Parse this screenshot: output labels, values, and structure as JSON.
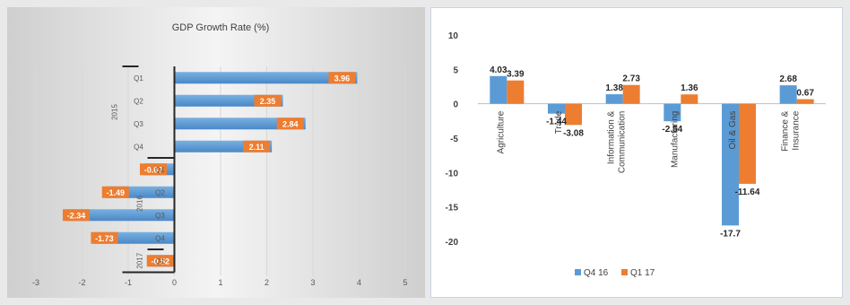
{
  "chart_data": [
    {
      "type": "bar",
      "orientation": "horizontal",
      "title": "GDP Growth Rate (%)",
      "groups": [
        {
          "label": "2015",
          "categories": [
            "Q1",
            "Q2",
            "Q3",
            "Q4"
          ],
          "values": [
            3.96,
            2.35,
            2.84,
            2.11
          ]
        },
        {
          "label": "2016",
          "categories": [
            "Q1",
            "Q2",
            "Q3",
            "Q4"
          ],
          "values": [
            -0.67,
            -1.49,
            -2.34,
            -1.73
          ]
        },
        {
          "label": "2017",
          "categories": [
            "Q1"
          ],
          "values": [
            -0.52
          ]
        }
      ],
      "xlim": [
        -3,
        5
      ],
      "xticks": [
        "-3",
        "-2",
        "-1",
        "0",
        "1",
        "2",
        "3",
        "4",
        "5"
      ],
      "bar_color": "#5b9bd5",
      "label_color": "#ed7d31",
      "grid": true,
      "background": "gradient-grey"
    },
    {
      "type": "bar",
      "categories": [
        "Agriculture",
        "Trade",
        "Information & Communication",
        "Manufacturing",
        "Oil & Gas",
        "Finance & Insurance"
      ],
      "category_lines": [
        [
          "Agriculture"
        ],
        [
          "Trade"
        ],
        [
          "Information &",
          "Communication"
        ],
        [
          "Manufacturing"
        ],
        [
          "Oil & Gas"
        ],
        [
          "Finance &",
          "Insurance"
        ]
      ],
      "series": [
        {
          "name": "Q4 16",
          "color": "#5b9bd5",
          "values": [
            4.03,
            -1.44,
            1.38,
            -2.54,
            -17.7,
            2.68
          ]
        },
        {
          "name": "Q1 17",
          "color": "#ed7d31",
          "values": [
            3.39,
            -3.08,
            2.73,
            1.36,
            -11.64,
            0.67
          ]
        }
      ],
      "value_labels": [
        [
          "4.03",
          "-1.44",
          "1.38",
          "-2.54",
          "-17.7",
          "2.68"
        ],
        [
          "3.39",
          "-3.08",
          "2.73",
          "1.36",
          "-11.64",
          "0.67"
        ]
      ],
      "ylim": [
        -20,
        10
      ],
      "yticks": [
        "10",
        "5",
        "0",
        "-5",
        "-10",
        "-15",
        "-20"
      ],
      "legend": "bottom",
      "grid": false
    }
  ]
}
